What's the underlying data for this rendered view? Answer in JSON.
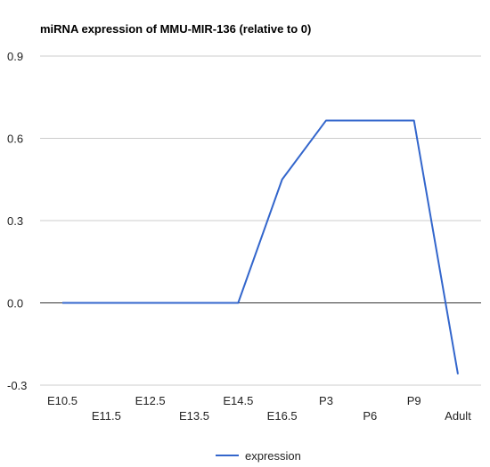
{
  "chart_data": {
    "type": "line",
    "title": "miRNA expression of MMU-MIR-136 (relative to 0)",
    "categories": [
      "E10.5",
      "E11.5",
      "E12.5",
      "E13.5",
      "E14.5",
      "E16.5",
      "P3",
      "P6",
      "P9",
      "Adult"
    ],
    "series": [
      {
        "name": "expression",
        "color": "#3366cc",
        "values": [
          0.0,
          0.0,
          0.0,
          0.0,
          0.0,
          0.45,
          0.665,
          0.665,
          0.665,
          -0.26
        ]
      }
    ],
    "yticks": [
      0.9,
      0.6,
      0.3,
      0.0,
      -0.3
    ],
    "ytick_labels": [
      "0.9",
      "0.6",
      "0.3",
      "0.0",
      "-0.3"
    ],
    "ylim": [
      -0.3,
      0.9
    ],
    "xlabel": "",
    "ylabel": "",
    "grid": true,
    "legend_position": "bottom",
    "colors": {
      "gridline": "#cccccc",
      "baseline": "#333333",
      "text": "#222222"
    }
  }
}
